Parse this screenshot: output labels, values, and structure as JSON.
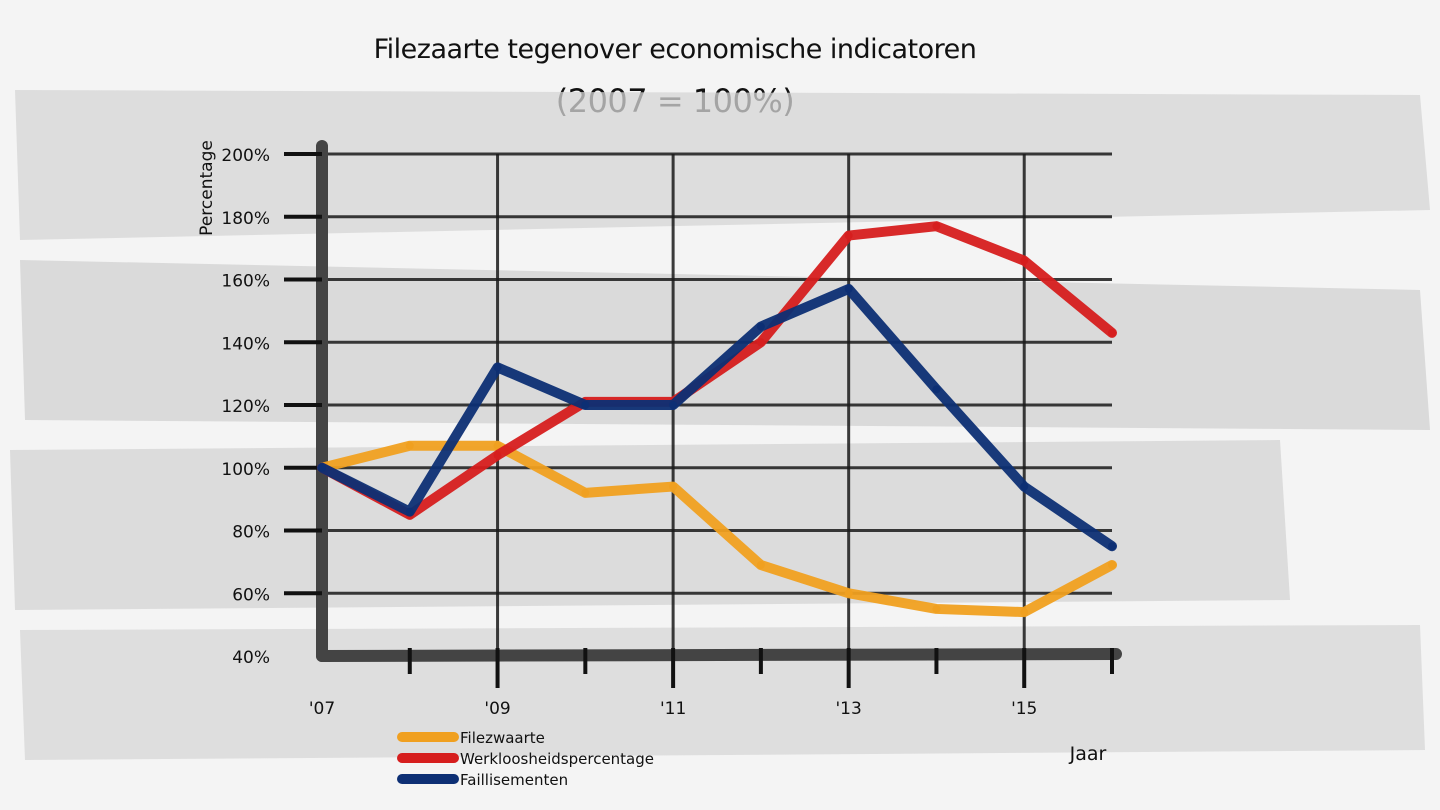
{
  "chart_data": {
    "type": "line",
    "title": "Filezaarte tegenover economische indicatoren",
    "subtitle": "(2007 = 100%)",
    "xlabel": "Jaar",
    "ylabel": "Percentage",
    "x": [
      2007,
      2008,
      2009,
      2010,
      2011,
      2012,
      2013,
      2014,
      2015,
      2016
    ],
    "x_tick_labels": [
      "'07",
      "'09",
      "'11",
      "'13",
      "'15"
    ],
    "x_tick_values": [
      2007,
      2009,
      2011,
      2013,
      2015
    ],
    "y_tick_labels": [
      "40%",
      "60%",
      "80%",
      "100%",
      "120%",
      "140%",
      "160%",
      "180%",
      "200%"
    ],
    "y_tick_values": [
      40,
      60,
      80,
      100,
      120,
      140,
      160,
      180,
      200
    ],
    "ylim": [
      40,
      200
    ],
    "xlim": [
      2007,
      2016
    ],
    "grid": true,
    "legend_position": "bottom-left",
    "series": [
      {
        "name": "Filezwaarte",
        "color": "#f0a020",
        "values": [
          100,
          107,
          107,
          92,
          94,
          69,
          60,
          55,
          54,
          69
        ]
      },
      {
        "name": "Werkloosheidspercentage",
        "color": "#d61e1e",
        "values": [
          100,
          85,
          104,
          121,
          121,
          140,
          174,
          177,
          166,
          143
        ]
      },
      {
        "name": "Faillisementen",
        "color": "#0d2f74",
        "values": [
          100,
          86,
          132,
          120,
          120,
          145,
          157,
          125,
          94,
          75
        ]
      }
    ]
  }
}
